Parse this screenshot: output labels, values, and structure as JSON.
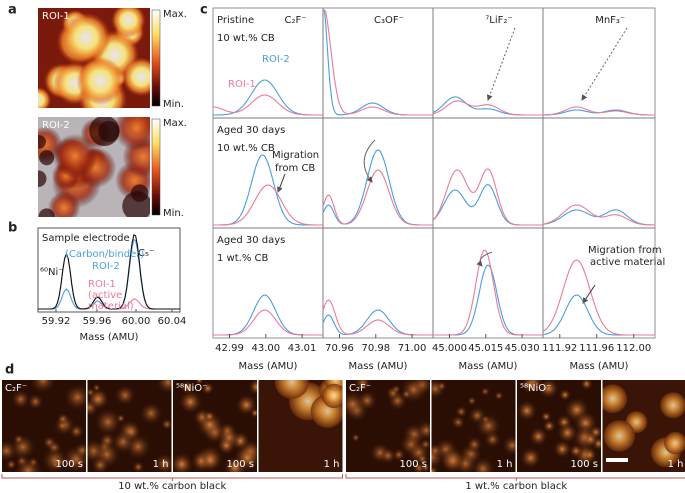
{
  "panel_a": {
    "label": "a",
    "roi1": {
      "title": "ROI-1",
      "max": "Max.",
      "min": "Min."
    },
    "roi2": {
      "title": "ROI-2",
      "max": "Max.",
      "min": "Min."
    }
  },
  "panel_b": {
    "label": "b",
    "title": "Sample electrode",
    "peak_labels": [
      "C₅⁻",
      "⁶⁰Ni⁻"
    ],
    "roi2_label": [
      "(Carbon/binder)",
      "ROI-2"
    ],
    "roi1_label": [
      "ROI-1",
      "(active",
      "material)"
    ],
    "xticks": [
      "59.92",
      "59.96",
      "60.00",
      "60.04"
    ],
    "xlabel": "Mass (AMU)"
  },
  "panel_c": {
    "label": "c",
    "columns": [
      {
        "ion": "C₂F⁻",
        "xticks": [
          "42.99",
          "43.00",
          "43.01"
        ],
        "xlabel": "Mass (AMU)"
      },
      {
        "ion": "C₃OF⁻",
        "xticks": [
          "70.96",
          "70.98",
          "71.00"
        ],
        "xlabel": "Mass (AMU)"
      },
      {
        "ion": "⁷LiF₂⁻",
        "xticks": [
          "45.000",
          "45.015",
          "45.030"
        ],
        "xlabel": "Mass (AMU)"
      },
      {
        "ion": "MnF₃⁻",
        "xticks": [
          "111.92",
          "111.96",
          "112.00"
        ],
        "xlabel": "Mass (AMU)"
      }
    ],
    "rows": [
      {
        "lines": [
          "Pristine",
          "10 wt.% CB"
        ]
      },
      {
        "lines": [
          "Aged 30 days",
          "10 wt.% CB"
        ]
      },
      {
        "lines": [
          "Aged 30 days",
          "1 wt.% CB"
        ]
      }
    ],
    "legend": {
      "roi2": "ROI-2",
      "roi1": "ROI-1"
    },
    "annotations": [
      {
        "lines": [
          "Migration",
          "from CB"
        ]
      },
      {
        "lines": [
          "Migration from",
          "active material"
        ]
      }
    ]
  },
  "panel_d": {
    "label": "d",
    "groups": [
      {
        "caption": "10 wt.% carbon black",
        "images": [
          {
            "ion": "C₂F⁻",
            "time": "100 s"
          },
          {
            "time": "1 h"
          },
          {
            "ion": "⁵⁸NiO⁻",
            "time": "100 s"
          },
          {
            "time": "1 h"
          }
        ]
      },
      {
        "caption": "1 wt.% carbon black",
        "images": [
          {
            "ion": "C₂F⁻",
            "time": "100 s"
          },
          {
            "time": "1 h"
          },
          {
            "ion": "⁵⁸NiO⁻",
            "time": "100 s"
          },
          {
            "time": "1 h"
          }
        ]
      }
    ]
  }
}
